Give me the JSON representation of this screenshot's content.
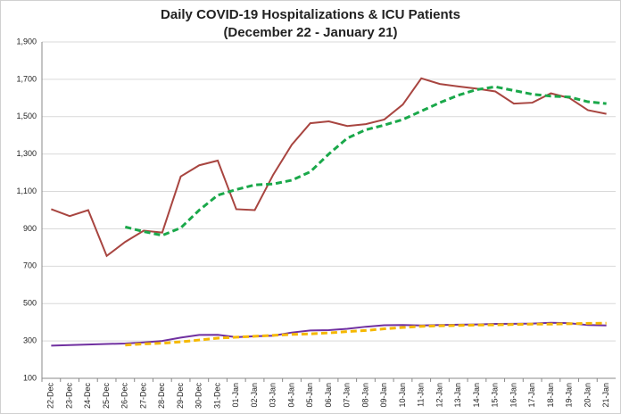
{
  "chart_data": {
    "type": "line",
    "title": [
      "Daily COVID-19 Hospitalizations & ICU Patients",
      "(December 22 - January 21)"
    ],
    "categories": [
      "22-Dec",
      "23-Dec",
      "24-Dec",
      "25-Dec",
      "26-Dec",
      "27-Dec",
      "28-Dec",
      "29-Dec",
      "30-Dec",
      "31-Dec",
      "01-Jan",
      "02-Jan",
      "03-Jan",
      "04-Jan",
      "05-Jan",
      "06-Jan",
      "07-Jan",
      "08-Jan",
      "09-Jan",
      "10-Jan",
      "11-Jan",
      "12-Jan",
      "13-Jan",
      "14-Jan",
      "15-Jan",
      "16-Jan",
      "17-Jan",
      "18-Jan",
      "19-Jan",
      "20-Jan",
      "21-Jan"
    ],
    "series": [
      {
        "color": "#a84540",
        "dashed": false,
        "values": [
          1005,
          968,
          1000,
          755,
          830,
          890,
          880,
          1180,
          1240,
          1265,
          1005,
          1000,
          1190,
          1350,
          1465,
          1475,
          1450,
          1460,
          1485,
          1565,
          1705,
          1675,
          1662,
          1650,
          1635,
          1570,
          1575,
          1625,
          1600,
          1535,
          1515
        ]
      },
      {
        "color": "#1aa84a",
        "dashed": true,
        "values": [
          null,
          null,
          null,
          null,
          910,
          885,
          865,
          905,
          1000,
          1080,
          1110,
          1135,
          1140,
          1160,
          1205,
          1300,
          1385,
          1430,
          1455,
          1485,
          1530,
          1575,
          1615,
          1645,
          1660,
          1640,
          1620,
          1610,
          1605,
          1580,
          1570
        ]
      },
      {
        "color": "#7030a0",
        "dashed": false,
        "values": [
          275,
          278,
          281,
          284,
          286,
          292,
          300,
          318,
          332,
          333,
          320,
          325,
          328,
          345,
          356,
          358,
          365,
          376,
          384,
          385,
          383,
          385,
          387,
          388,
          391,
          392,
          393,
          397,
          395,
          385,
          383
        ]
      },
      {
        "color": "#f5b800",
        "dashed": true,
        "values": [
          null,
          null,
          null,
          null,
          278,
          284,
          288,
          295,
          305,
          315,
          320,
          325,
          330,
          335,
          338,
          343,
          350,
          356,
          365,
          372,
          378,
          381,
          383,
          385,
          386,
          388,
          390,
          390,
          392,
          394,
          395
        ]
      }
    ],
    "ylim": [
      100,
      1900
    ],
    "yticks": [
      100,
      300,
      500,
      700,
      900,
      {
        "value": 1100,
        "label": "1,100"
      },
      {
        "value": 1300,
        "label": "1,300"
      },
      {
        "value": 1500,
        "label": "1,500"
      },
      {
        "value": 1700,
        "label": "1,700"
      },
      {
        "value": 1900,
        "label": "1,900"
      }
    ],
    "grid": true
  }
}
